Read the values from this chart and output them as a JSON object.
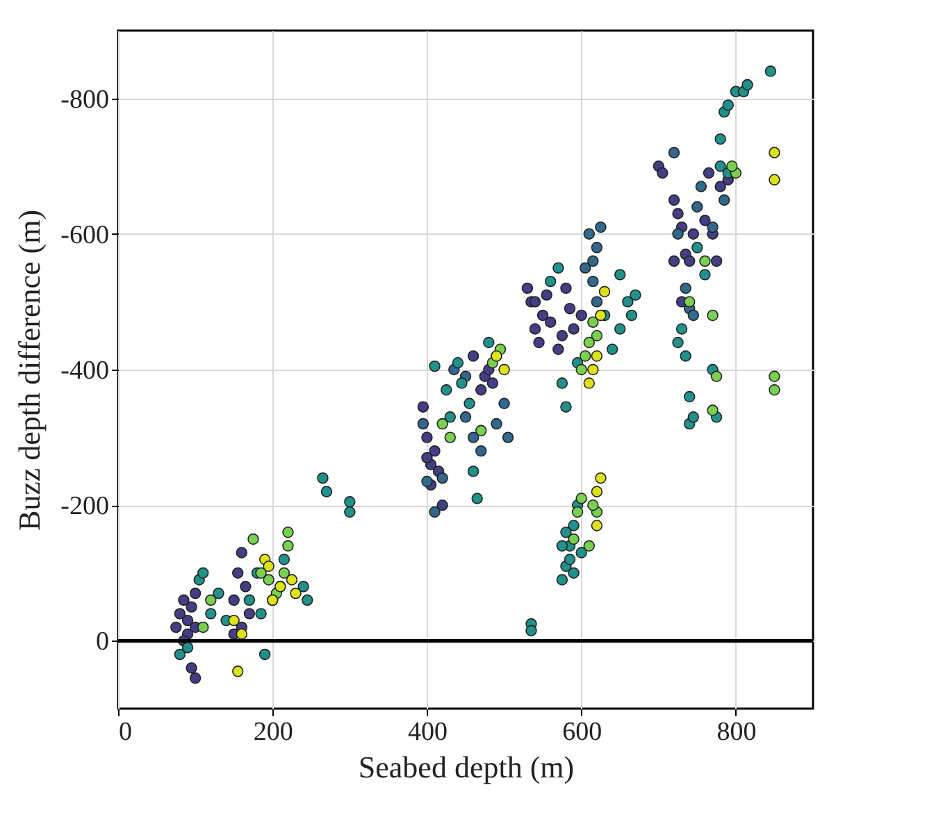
{
  "chart_data": {
    "type": "scatter",
    "xlabel": "Seabed depth (m)",
    "ylabel": "Buzz depth difference (m)",
    "xlim": [
      0,
      900
    ],
    "xticks": [
      0,
      200,
      400,
      600,
      800
    ],
    "ylim": [
      100,
      -900
    ],
    "yticks": [
      -800,
      -600,
      -400,
      -200,
      0
    ],
    "grid": true,
    "legend": false,
    "marker": "circle",
    "ref_lines": [
      {
        "axis": "y",
        "value": 0,
        "color": "#000000"
      }
    ],
    "series": [
      {
        "color": "#433e85",
        "x": [
          75,
          80,
          85,
          90,
          90,
          95,
          100,
          100,
          85,
          95,
          100,
          150,
          155,
          160,
          165,
          170,
          150,
          160,
          395,
          400,
          405,
          405,
          410,
          415,
          420,
          400,
          470,
          475,
          480,
          485,
          460,
          530,
          535,
          540,
          545,
          550,
          555,
          560,
          570,
          575,
          580,
          585,
          590,
          600,
          540,
          700,
          705,
          720,
          725,
          730,
          735,
          740,
          745,
          760,
          765,
          770,
          775,
          780,
          790,
          720,
          730
        ],
        "values": [
          -20,
          -40,
          -60,
          -30,
          -10,
          -50,
          -70,
          -20,
          0,
          40,
          55,
          -60,
          -100,
          -130,
          -80,
          -40,
          -10,
          -20,
          -345,
          -300,
          -260,
          -230,
          -280,
          -250,
          -200,
          -270,
          -370,
          -390,
          -400,
          -380,
          -420,
          -520,
          -500,
          -460,
          -440,
          -480,
          -510,
          -470,
          -430,
          -450,
          -520,
          -490,
          -460,
          -480,
          -500,
          -700,
          -690,
          -650,
          -630,
          -610,
          -570,
          -560,
          -600,
          -620,
          -690,
          -600,
          -560,
          -670,
          -680,
          -560,
          -500
        ]
      },
      {
        "color": "#31688e",
        "x": [
          395,
          400,
          410,
          420,
          435,
          450,
          450,
          460,
          470,
          490,
          500,
          505,
          610,
          615,
          620,
          625,
          615,
          605,
          620,
          720,
          725,
          735,
          740,
          745,
          750,
          755,
          770,
          785
        ],
        "values": [
          -320,
          -235,
          -190,
          -240,
          -400,
          -390,
          -330,
          -300,
          -280,
          -320,
          -350,
          -300,
          -600,
          -560,
          -580,
          -610,
          -530,
          -550,
          -500,
          -720,
          -600,
          -520,
          -490,
          -480,
          -640,
          -670,
          -610,
          -650
        ]
      },
      {
        "color": "#21918c",
        "x": [
          80,
          90,
          105,
          110,
          120,
          130,
          140,
          170,
          180,
          185,
          190,
          200,
          210,
          215,
          240,
          245,
          265,
          270,
          300,
          300,
          410,
          425,
          430,
          440,
          445,
          455,
          460,
          465,
          480,
          490,
          560,
          570,
          575,
          595,
          630,
          640,
          650,
          660,
          665,
          670,
          650,
          580,
          535,
          535,
          575,
          580,
          585,
          590,
          595,
          580,
          585,
          590,
          600,
          575,
          725,
          730,
          735,
          740,
          740,
          745,
          750,
          760,
          770,
          775,
          780,
          785,
          790,
          800,
          810,
          815,
          845,
          780,
          790
        ],
        "values": [
          20,
          10,
          -90,
          -100,
          -40,
          -70,
          -30,
          -60,
          -100,
          -40,
          20,
          -60,
          -80,
          -120,
          -80,
          -60,
          -240,
          -220,
          -205,
          -190,
          -405,
          -370,
          -330,
          -410,
          -380,
          -350,
          -250,
          -210,
          -440,
          -420,
          -530,
          -550,
          -380,
          -410,
          -480,
          -430,
          -460,
          -500,
          -480,
          -510,
          -540,
          -345,
          -25,
          -15,
          -90,
          -110,
          -140,
          -170,
          -200,
          -160,
          -120,
          -100,
          -130,
          -140,
          -440,
          -460,
          -420,
          -360,
          -320,
          -330,
          -580,
          -540,
          -400,
          -330,
          -740,
          -780,
          -790,
          -810,
          -810,
          -820,
          -840,
          -700,
          -690
        ]
      },
      {
        "color": "#7ad151",
        "x": [
          110,
          120,
          175,
          185,
          195,
          205,
          220,
          220,
          215,
          420,
          430,
          470,
          485,
          495,
          600,
          605,
          615,
          620,
          610,
          610,
          620,
          615,
          595,
          600,
          590,
          740,
          760,
          770,
          775,
          800,
          795,
          850,
          850,
          770
        ],
        "values": [
          -20,
          -60,
          -150,
          -100,
          -90,
          -70,
          -160,
          -140,
          -100,
          -320,
          -300,
          -310,
          -410,
          -430,
          -400,
          -420,
          -470,
          -450,
          -440,
          -140,
          -190,
          -200,
          -190,
          -210,
          -150,
          -500,
          -560,
          -480,
          -390,
          -690,
          -700,
          -390,
          -370,
          -340
        ]
      },
      {
        "color": "#dde318",
        "x": [
          150,
          155,
          160,
          190,
          195,
          200,
          210,
          225,
          230,
          490,
          500,
          610,
          615,
          620,
          625,
          630,
          620,
          625,
          620,
          850,
          850
        ],
        "values": [
          -30,
          45,
          -10,
          -120,
          -110,
          -60,
          -80,
          -90,
          -70,
          -420,
          -400,
          -380,
          -400,
          -420,
          -480,
          -515,
          -220,
          -240,
          -170,
          -720,
          -680
        ]
      }
    ]
  }
}
